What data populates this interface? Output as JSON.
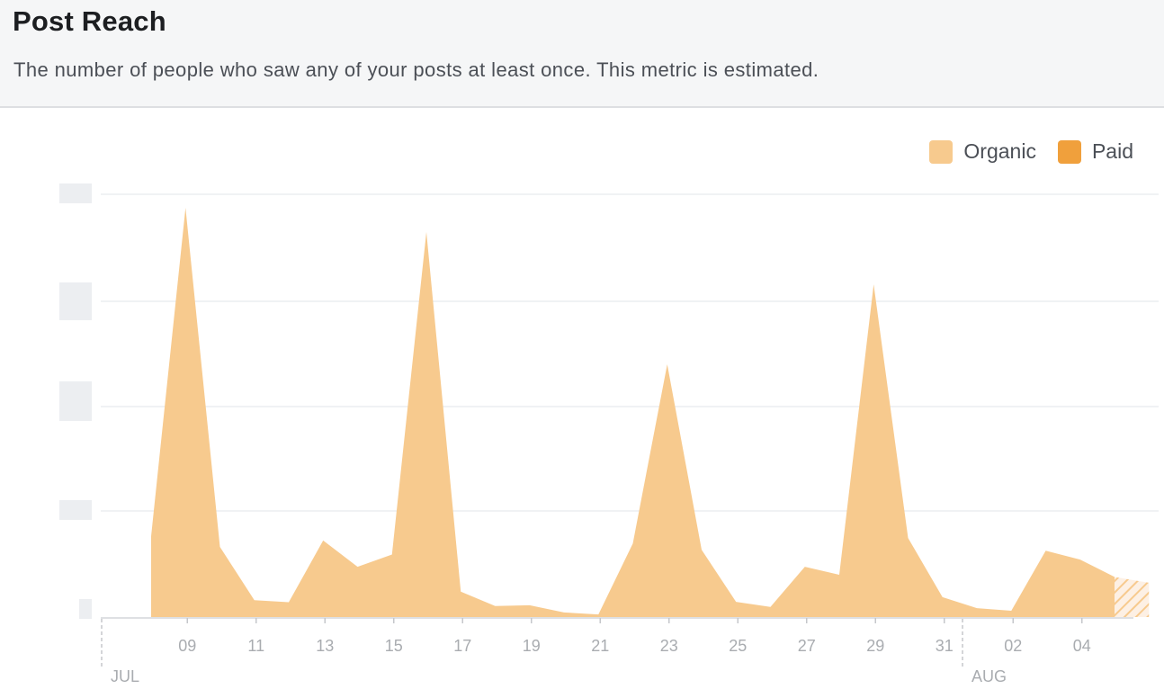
{
  "header": {
    "title": "Post Reach",
    "subtitle": "The number of people who saw any of your posts at least once. This metric is estimated."
  },
  "legend": {
    "organic_label": "Organic",
    "paid_label": "Paid"
  },
  "colors": {
    "organic": "#f7ca8e",
    "paid": "#f0a03c",
    "gridline": "#ebedf0",
    "tick_label": "#a9acb0",
    "highlight_band": "#fae3dc"
  },
  "chart_data": {
    "type": "area",
    "x": [
      "Jul 08",
      "Jul 09",
      "Jul 10",
      "Jul 11",
      "Jul 12",
      "Jul 13",
      "Jul 14",
      "Jul 15",
      "Jul 16",
      "Jul 17",
      "Jul 18",
      "Jul 19",
      "Jul 20",
      "Jul 21",
      "Jul 22",
      "Jul 23",
      "Jul 24",
      "Jul 25",
      "Jul 26",
      "Jul 27",
      "Jul 28",
      "Jul 29",
      "Jul 30",
      "Jul 31",
      "Aug 01",
      "Aug 02",
      "Aug 03",
      "Aug 04",
      "Aug 05",
      "Aug 06"
    ],
    "series": [
      {
        "name": "Organic",
        "values": [
          19.1,
          96.8,
          16.6,
          4.0,
          3.5,
          18.1,
          11.9,
          14.8,
          91.1,
          6.0,
          2.6,
          2.8,
          1.1,
          0.6,
          17.4,
          59.8,
          15.9,
          3.6,
          2.4,
          11.9,
          10.0,
          78.7,
          18.7,
          4.7,
          2.1,
          1.5,
          15.7,
          13.6,
          9.5,
          8.1
        ]
      },
      {
        "name": "Paid",
        "values": [
          0,
          0,
          0,
          0,
          0,
          0,
          0,
          0,
          0,
          0,
          0,
          0,
          0,
          0,
          0,
          0,
          0,
          0,
          0,
          0,
          0,
          0,
          0,
          0,
          0,
          0,
          0,
          0,
          0,
          0
        ]
      }
    ],
    "x_tick_labels": [
      "09",
      "11",
      "13",
      "15",
      "17",
      "19",
      "21",
      "23",
      "25",
      "27",
      "29",
      "31",
      "02",
      "04"
    ],
    "month_labels": [
      "JUL",
      "AUG"
    ],
    "ylim": [
      0,
      100
    ],
    "grid": true,
    "legend_position": "top-right",
    "estimated_from": "Aug 05",
    "highlighted_period": "Aug 06"
  }
}
